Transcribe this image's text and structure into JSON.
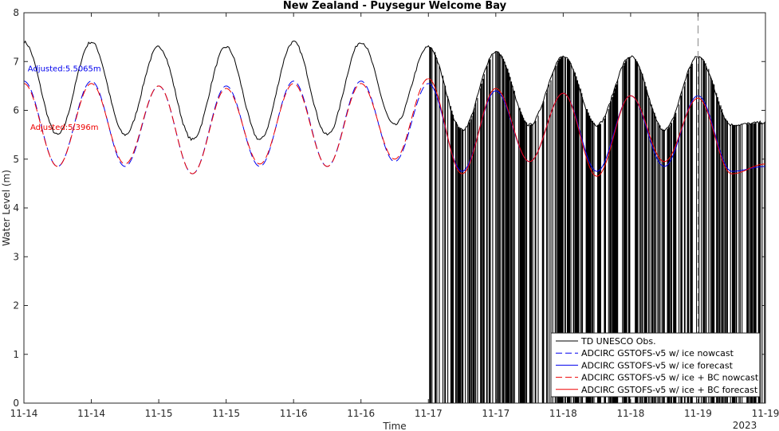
{
  "chart_data": {
    "type": "line",
    "title": "New Zealand - Puysegur Welcome Bay",
    "xlabel": "Time",
    "ylabel": "Water Level (m)",
    "ylim": [
      0,
      8
    ],
    "yticks": [
      0,
      1,
      2,
      3,
      4,
      5,
      6,
      7,
      8
    ],
    "xlim": [
      0,
      5.5
    ],
    "xtick_labels": [
      "11-14",
      "11-14",
      "11-15",
      "11-15",
      "11-16",
      "11-16",
      "11-17",
      "11-17",
      "11-18",
      "11-18",
      "11-19",
      "11-19"
    ],
    "xtick_positions": [
      0,
      0.5,
      1,
      1.5,
      2,
      2.5,
      3,
      3.5,
      4,
      4.5,
      5,
      5.5
    ],
    "year_label": "2023",
    "vline_dashed_x": 5.0,
    "annotations": [
      {
        "text": "Adjusted:5.5065m",
        "x": 0.3,
        "y": 6.8,
        "color": "#0000ee"
      },
      {
        "text": "Adjusted:5.396m",
        "x": 0.3,
        "y": 5.6,
        "color": "#ee0000"
      }
    ],
    "noisy_obs_start_x": 3.0,
    "series": [
      {
        "name": "TD UNESCO Obs.",
        "color": "#000000",
        "dash": "solid",
        "x": [
          0,
          0.25,
          0.5,
          0.75,
          1.0,
          1.25,
          1.5,
          1.75,
          2.0,
          2.25,
          2.5,
          2.75,
          3.0,
          3.25,
          3.5,
          3.75,
          4.0,
          4.25,
          4.5,
          4.75,
          5.0,
          5.25,
          5.5
        ],
        "values": [
          7.4,
          5.5,
          7.4,
          5.5,
          7.3,
          5.4,
          7.3,
          5.4,
          7.4,
          5.5,
          7.4,
          5.7,
          7.3,
          5.6,
          7.2,
          5.7,
          7.1,
          5.7,
          7.1,
          5.6,
          7.1,
          5.7,
          5.75
        ]
      },
      {
        "name": "ADCIRC GSTOFS-v5 w/ ice nowcast",
        "color": "#0000ee",
        "dash": "dashed",
        "x": [
          0,
          0.25,
          0.5,
          0.75,
          1.0,
          1.25,
          1.5,
          1.75,
          2.0,
          2.25,
          2.5,
          2.75,
          3.0
        ],
        "values": [
          6.6,
          4.85,
          6.6,
          4.85,
          6.5,
          4.7,
          6.5,
          4.85,
          6.6,
          4.85,
          6.6,
          4.95,
          6.55
        ]
      },
      {
        "name": "ADCIRC GSTOFS-v5 w/ ice forecast",
        "color": "#0000ee",
        "dash": "solid",
        "x": [
          3.0,
          3.25,
          3.5,
          3.75,
          4.0,
          4.25,
          4.5,
          4.75,
          5.0,
          5.25,
          5.5
        ],
        "values": [
          6.55,
          4.75,
          6.4,
          4.95,
          6.35,
          4.75,
          6.3,
          4.85,
          6.3,
          4.75,
          4.85
        ]
      },
      {
        "name": "ADCIRC GSTOFS-v5 w/ ice + BC nowcast",
        "color": "#ee0000",
        "dash": "dashed",
        "x": [
          0,
          0.25,
          0.5,
          0.75,
          1.0,
          1.25,
          1.5,
          1.75,
          2.0,
          2.25,
          2.5,
          2.75,
          3.0
        ],
        "values": [
          6.55,
          4.85,
          6.55,
          4.9,
          6.5,
          4.7,
          6.45,
          4.9,
          6.55,
          4.85,
          6.55,
          5.0,
          6.65
        ]
      },
      {
        "name": "ADCIRC GSTOFS-v5 w/ ice + BC forecast",
        "color": "#ee0000",
        "dash": "solid",
        "x": [
          3.0,
          3.25,
          3.5,
          3.75,
          4.0,
          4.25,
          4.5,
          4.75,
          5.0,
          5.25,
          5.5
        ],
        "values": [
          6.65,
          4.7,
          6.45,
          4.95,
          6.35,
          4.65,
          6.3,
          4.95,
          6.25,
          4.7,
          4.9
        ]
      }
    ],
    "legend_placement": "bottom-right",
    "grid": false
  }
}
